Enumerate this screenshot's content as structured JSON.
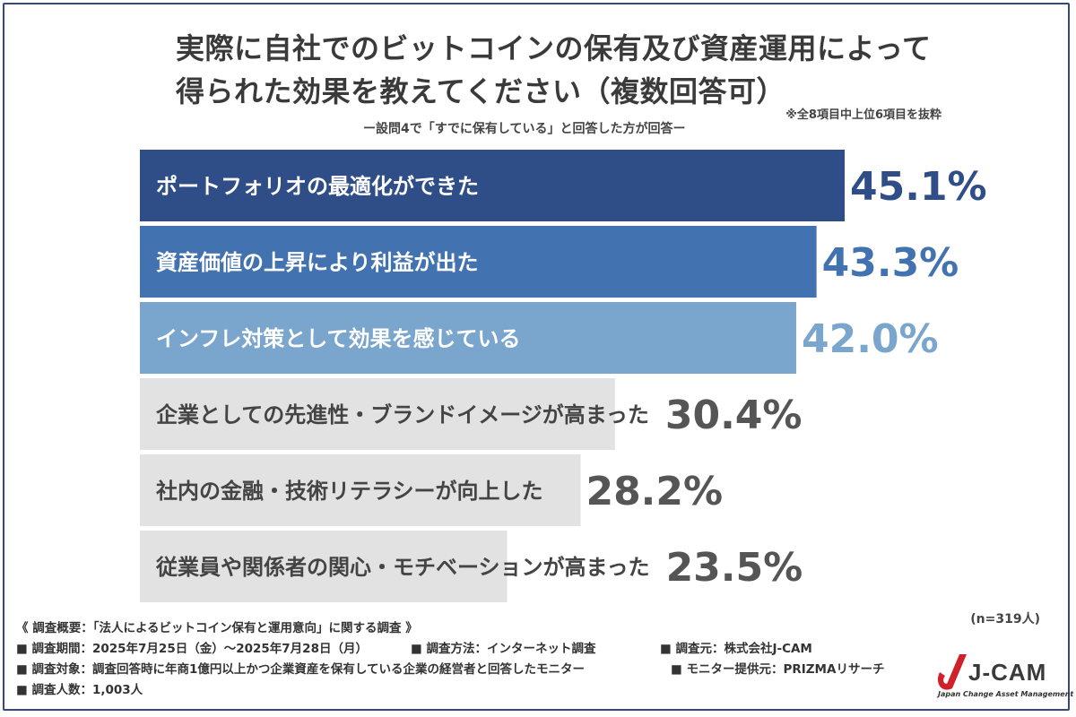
{
  "title_line1": "実際に自社でのビットコインの保有及び資産運用によって",
  "title_line2": "得られた効果を教えてください（複数回答可）",
  "note": "※全8項目中上位6項目を抜粋",
  "subtitle": "ー設問4で「すでに保有している」と回答した方が回答ー",
  "sample_size": "(n=319人)",
  "chart_data": {
    "type": "bar",
    "orientation": "horizontal",
    "title": "実際に自社でのビットコインの保有及び資産運用によって得られた効果を教えてください（複数回答可）",
    "categories": [
      "ポートフォリオの最適化ができた",
      "資産価値の上昇により利益が出た",
      "インフレ対策として効果を感じている",
      "企業としての先進性・ブランドイメージが高まった",
      "社内の金融・技術リテラシーが向上した",
      "従業員や関係者の関心・モチベーションが高まった"
    ],
    "values": [
      45.1,
      43.3,
      42.0,
      30.4,
      28.2,
      23.5
    ],
    "value_labels": [
      "45.1%",
      "43.3%",
      "42.0%",
      "30.4%",
      "28.2%",
      "23.5%"
    ],
    "xlim": [
      0,
      45.1
    ],
    "bar_colors": [
      "#2f4e88",
      "#4273b0",
      "#7aa5cc",
      "#e2e2e2",
      "#e2e2e2",
      "#e2e2e2"
    ],
    "label_colors": [
      "#ffffff",
      "#ffffff",
      "#ffffff",
      "#444444",
      "#444444",
      "#444444"
    ],
    "value_colors": [
      "#2f4e88",
      "#4273b0",
      "#7aa5cc",
      "#555555",
      "#555555",
      "#555555"
    ]
  },
  "footer": {
    "line1": "《 調査概要：「法人によるビットコイン保有と運用意向」に関する調査 》",
    "period": "■ 調査期間：2025年7月25日（金）〜2025年7月28日（月）",
    "method": "■ 調査方法：インターネット調査",
    "organizer": "■ 調査元：株式会社J-CAM",
    "target": "■ 調査対象：調査回答時に年商1億円以上かつ企業資産を保有している企業の経営者と回答したモニター",
    "provider": "■ モニター提供元：PRIZMAリサーチ",
    "count": "■ 調査人数：1,003人"
  },
  "logo": {
    "name": "J-CAM",
    "tagline": "Japan Change Asset Management",
    "colors": {
      "red": "#d0202a",
      "dark": "#3a3a3a"
    }
  }
}
